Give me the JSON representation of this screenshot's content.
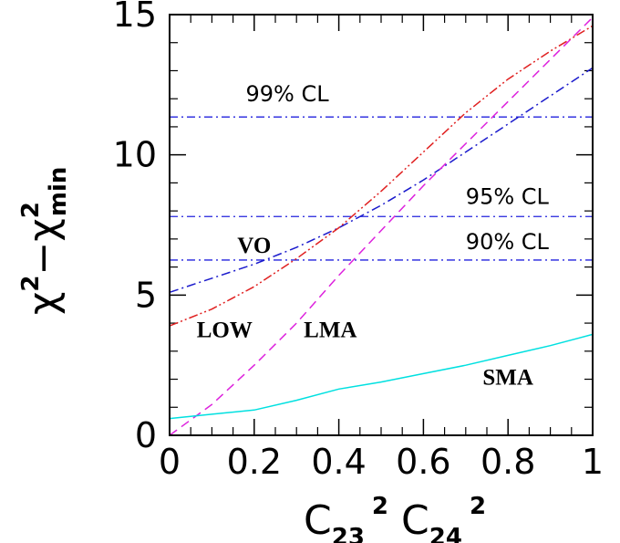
{
  "chart_data": {
    "type": "line",
    "xlabel": {
      "main": "C",
      "sub1": "23",
      "sup1": "2",
      "sub2": "24",
      "sup2": "2"
    },
    "ylabel": {
      "main1": "χ",
      "sup1": "2",
      "dash": "−",
      "main2": "χ",
      "sup2": "2",
      "sub2": "min"
    },
    "xlim": [
      0,
      1
    ],
    "ylim": [
      0,
      15
    ],
    "x_ticks": [
      "0",
      "0.2",
      "0.4",
      "0.6",
      "0.8",
      "1"
    ],
    "x_tick_values": [
      0,
      0.2,
      0.4,
      0.6,
      0.8,
      1
    ],
    "y_ticks": [
      "0",
      "5",
      "10",
      "15"
    ],
    "y_tick_values": [
      0,
      5,
      10,
      15
    ],
    "grid": false,
    "reference_lines": [
      {
        "label": "99% CL",
        "y": 11.35,
        "color": "#2222dd"
      },
      {
        "label": "95% CL",
        "y": 7.8,
        "color": "#2222dd"
      },
      {
        "label": "90% CL",
        "y": 6.25,
        "color": "#2222dd"
      }
    ],
    "series": [
      {
        "name": "VO",
        "color": "#1a1acc",
        "style": "dashdot",
        "x": [
          0,
          0.1,
          0.2,
          0.3,
          0.4,
          0.5,
          0.6,
          0.7,
          0.8,
          0.9,
          1.0
        ],
        "y": [
          5.1,
          5.6,
          6.1,
          6.7,
          7.4,
          8.2,
          9.1,
          10.1,
          11.1,
          12.1,
          13.1
        ]
      },
      {
        "name": "LOW",
        "color": "#e02020",
        "style": "dashdotdot",
        "x": [
          0,
          0.1,
          0.2,
          0.3,
          0.4,
          0.5,
          0.6,
          0.7,
          0.8,
          0.9,
          1.0
        ],
        "y": [
          3.9,
          4.5,
          5.3,
          6.3,
          7.4,
          8.7,
          10.1,
          11.5,
          12.7,
          13.7,
          14.6
        ]
      },
      {
        "name": "LMA",
        "color": "#dd22dd",
        "style": "dashed",
        "x": [
          0,
          0.1,
          0.2,
          0.3,
          0.4,
          0.5,
          0.6,
          0.7,
          0.8,
          0.9,
          1.0
        ],
        "y": [
          0.0,
          1.1,
          2.5,
          4.0,
          5.7,
          7.3,
          8.9,
          10.4,
          11.9,
          13.4,
          14.9
        ]
      },
      {
        "name": "SMA",
        "color": "#00e0e0",
        "style": "solid",
        "x": [
          0,
          0.1,
          0.2,
          0.3,
          0.4,
          0.5,
          0.6,
          0.7,
          0.8,
          0.9,
          1.0
        ],
        "y": [
          0.6,
          0.75,
          0.9,
          1.25,
          1.65,
          1.9,
          2.2,
          2.5,
          2.85,
          3.2,
          3.6
        ]
      }
    ],
    "series_labels": [
      {
        "text": "VO",
        "x": 0.2,
        "y": 6.5
      },
      {
        "text": "LOW",
        "x": 0.13,
        "y": 3.5
      },
      {
        "text": "LMA",
        "x": 0.38,
        "y": 3.5
      },
      {
        "text": "SMA",
        "x": 0.8,
        "y": 1.8
      }
    ]
  }
}
